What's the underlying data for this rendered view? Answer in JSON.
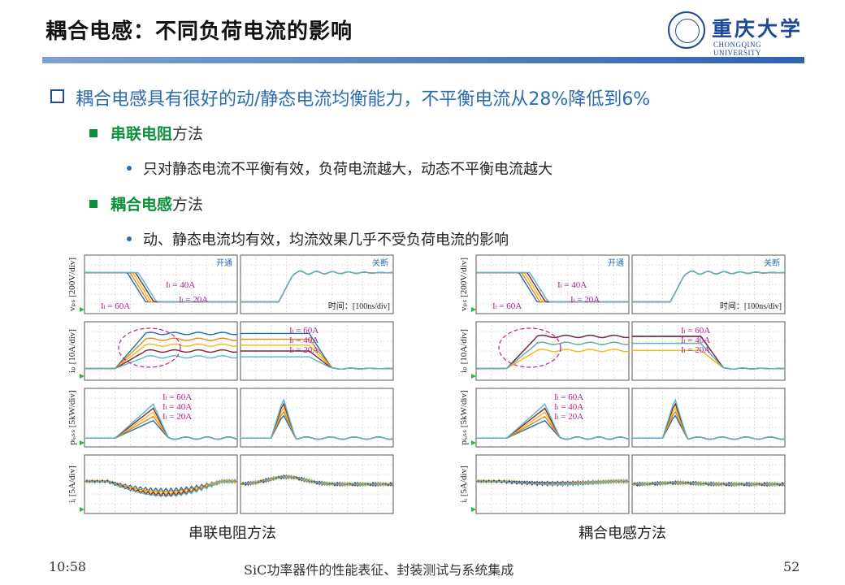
{
  "header": {
    "title": "耦合电感：不同负荷电流的影响",
    "logo": {
      "name": "重庆大学",
      "en": "CHONGQING UNIVERSITY",
      "icon": "university-seal-icon"
    }
  },
  "bullets": {
    "main": "耦合电感具有很好的动/静态电流均衡能力，不平衡电流从28%降低到6%",
    "method1": {
      "highlight": "串联电阻",
      "rest": "方法"
    },
    "method1_point": "只对静态电流不平衡有效，负荷电流越大，动态不平衡电流越大",
    "method2": {
      "highlight": "耦合电感",
      "rest": "方法"
    },
    "method2_point": "动、静态电流均有效，均流效果几乎不受负荷电流的影响"
  },
  "figures": {
    "left": {
      "caption": "串联电阻方法",
      "turn_on": "开通",
      "turn_off": "关断",
      "time_label": "时间：[100ns/div]",
      "row_labels": [
        "vₚₛ [200V/div]",
        "iₚ [10A/div]",
        "pₗₒₛₛ [5kW/div]",
        "iᵢ [5A/div]"
      ],
      "currents": [
        "Iₗ = 60A",
        "Iₗ = 40A",
        "Iₗ = 20A"
      ]
    },
    "right": {
      "caption": "耦合电感方法",
      "turn_on": "开通",
      "turn_off": "关断",
      "time_label": "时间：[100ns/div]",
      "row_labels": [
        "vₚₛ [200V/div]",
        "iₚ [10A/div]",
        "pₗₒₛₛ [5kW/div]",
        "iᵢ [5A/div]"
      ],
      "currents": [
        "Iₗ = 60A",
        "Iₗ = 40A",
        "Iₗ = 20A"
      ]
    },
    "trace_colors": [
      "#1f6fb0",
      "#e58a1f",
      "#f2b81c",
      "#7a2a3a",
      "#5bb5c9"
    ]
  },
  "footer": {
    "time": "10:58",
    "course": "SiC功率器件的性能表征、封装测试与系统集成",
    "page": "52"
  }
}
